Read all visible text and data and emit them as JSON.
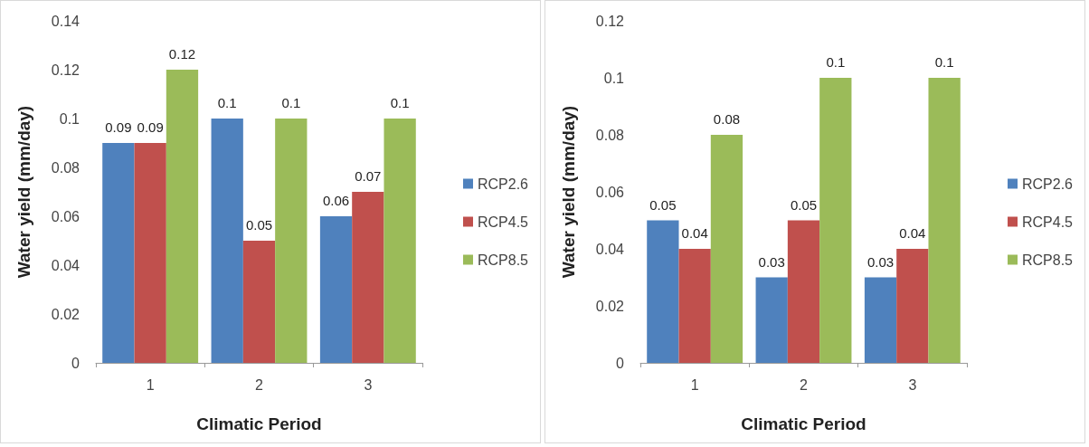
{
  "chart_data": [
    {
      "type": "bar",
      "xlabel": "Climatic Period",
      "ylabel": "Water yield (mm/day)",
      "categories": [
        "1",
        "2",
        "3"
      ],
      "series": [
        {
          "name": "RCP2.6",
          "color": "#4f81bd",
          "values": [
            0.09,
            0.1,
            0.06
          ]
        },
        {
          "name": "RCP4.5",
          "color": "#c0504d",
          "values": [
            0.09,
            0.05,
            0.07
          ]
        },
        {
          "name": "RCP8.5",
          "color": "#9bbb59",
          "values": [
            0.12,
            0.1,
            0.1
          ]
        }
      ],
      "ylim": [
        0,
        0.14
      ],
      "yticks": [
        0,
        0.02,
        0.04,
        0.06,
        0.08,
        0.1,
        0.12,
        0.14
      ],
      "grid": false,
      "legend": "right",
      "data_labels": true
    },
    {
      "type": "bar",
      "xlabel": "Climatic Period",
      "ylabel": "Water yield (mm/day)",
      "categories": [
        "1",
        "2",
        "3"
      ],
      "series": [
        {
          "name": "RCP2.6",
          "color": "#4f81bd",
          "values": [
            0.05,
            0.03,
            0.03
          ]
        },
        {
          "name": "RCP4.5",
          "color": "#c0504d",
          "values": [
            0.04,
            0.05,
            0.04
          ]
        },
        {
          "name": "RCP8.5",
          "color": "#9bbb59",
          "values": [
            0.08,
            0.1,
            0.1
          ]
        }
      ],
      "ylim": [
        0,
        0.12
      ],
      "yticks": [
        0,
        0.02,
        0.04,
        0.06,
        0.08,
        0.1,
        0.12
      ],
      "grid": false,
      "legend": "right",
      "data_labels": true
    }
  ]
}
